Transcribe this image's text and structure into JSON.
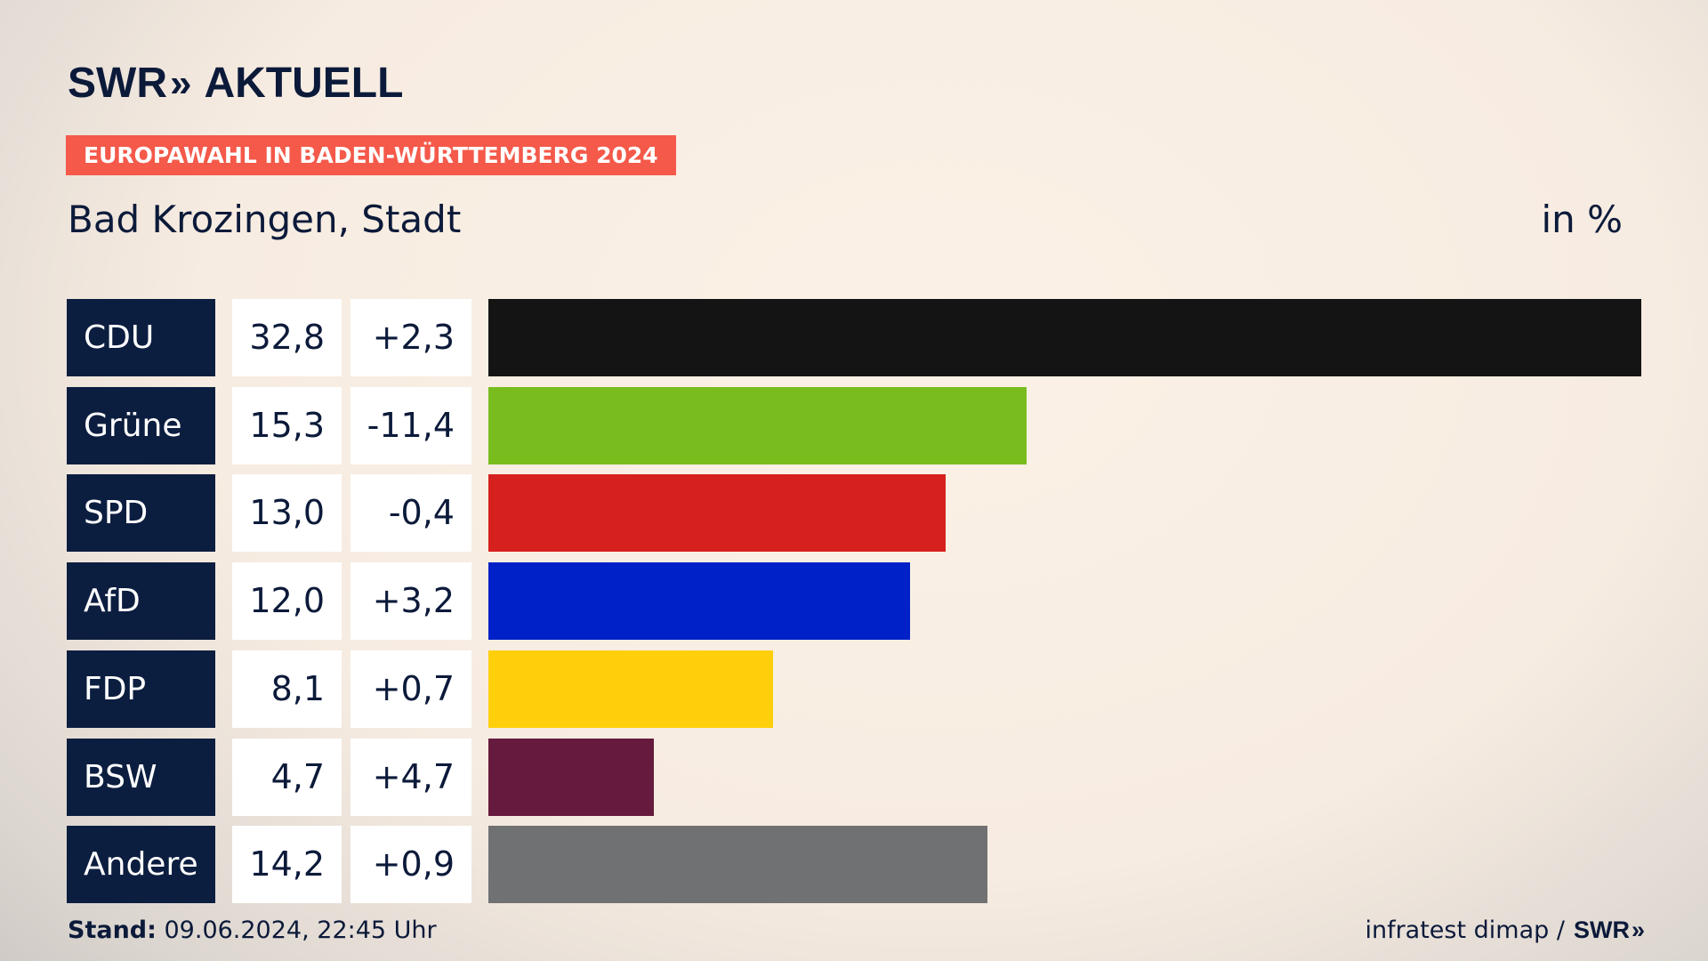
{
  "header": {
    "logo_swr": "SWR",
    "logo_chevrons": "»",
    "logo_aktuell": "AKTUELL",
    "badge": "EUROPAWAHL IN BADEN-WÜRTTEMBERG 2024",
    "subtitle": "Bad Krozingen, Stadt",
    "unit": "in %"
  },
  "footer": {
    "stand_label": "Stand:",
    "stand_value": " 09.06.2024, 22:45 Uhr",
    "source": "infratest dimap /",
    "source_logo": "SWR",
    "source_chevrons": "»"
  },
  "chart_data": {
    "type": "bar",
    "orientation": "horizontal",
    "categories": [
      "CDU",
      "Grüne",
      "SPD",
      "AfD",
      "FDP",
      "BSW",
      "Andere"
    ],
    "values": [
      32.8,
      15.3,
      13.0,
      12.0,
      8.1,
      4.7,
      14.2
    ],
    "value_labels": [
      "32,8",
      "15,3",
      "13,0",
      "12,0",
      "8,1",
      "4,7",
      "14,2"
    ],
    "diff_labels": [
      "+2,3",
      "-11,4",
      "-0,4",
      "+3,2",
      "+0,7",
      "+4,7",
      "+0,9"
    ],
    "colors": [
      "#141414",
      "#79bc1e",
      "#d6201e",
      "#0021c8",
      "#ffcf0b",
      "#661a3d",
      "#707172"
    ],
    "xlim": [
      0,
      32.8
    ],
    "grid": false
  }
}
